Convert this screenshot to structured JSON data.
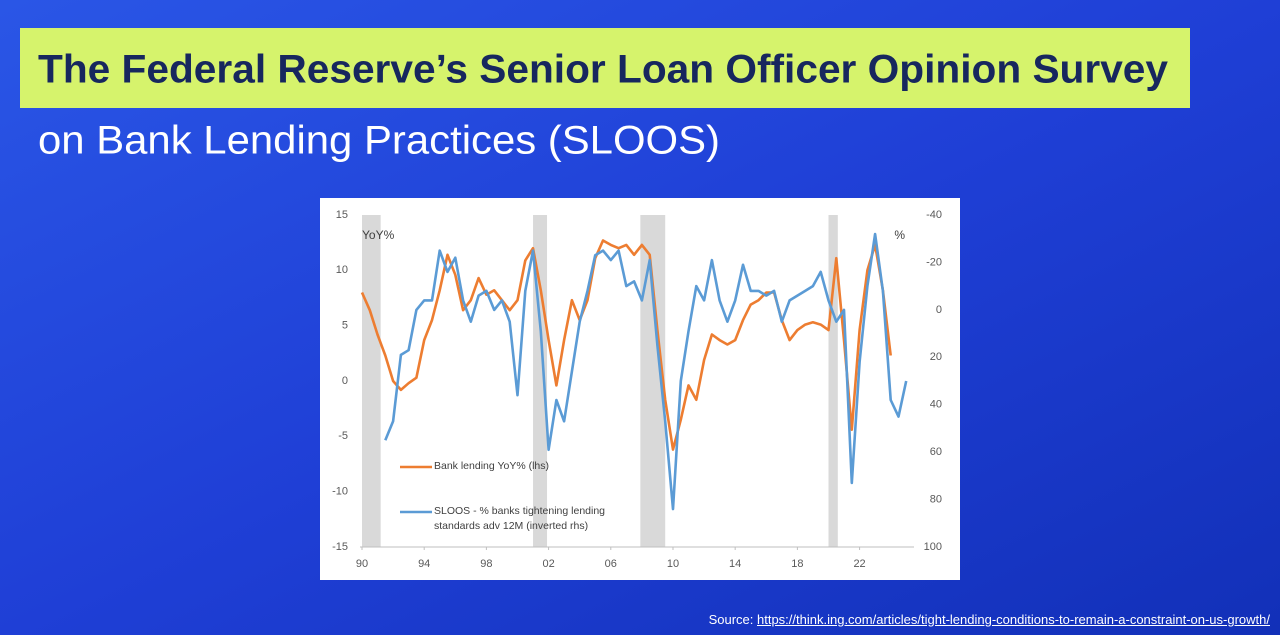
{
  "header": {
    "title": "The Federal Reserve’s Senior Loan Officer Opinion Survey",
    "subtitle": "on Bank Lending Practices (SLOOS)"
  },
  "source": {
    "label": "Source:",
    "url": "https://think.ing.com/articles/tight-lending-conditions-to-remain-a-constraint-on-us-growth/"
  },
  "chart_data": {
    "type": "line",
    "y_label": "YoY%",
    "y2_label": "%",
    "x": [
      1990.0,
      1990.5,
      1991.0,
      1991.5,
      1992.0,
      1992.5,
      1993.0,
      1993.5,
      1994.0,
      1994.5,
      1995.0,
      1995.5,
      1996.0,
      1996.5,
      1997.0,
      1997.5,
      1998.0,
      1998.5,
      1999.0,
      1999.5,
      2000.0,
      2000.5,
      2001.0,
      2001.5,
      2002.0,
      2002.5,
      2003.0,
      2003.5,
      2004.0,
      2004.5,
      2005.0,
      2005.5,
      2006.0,
      2006.5,
      2007.0,
      2007.5,
      2008.0,
      2008.5,
      2009.0,
      2009.5,
      2010.0,
      2010.5,
      2011.0,
      2011.5,
      2012.0,
      2012.5,
      2013.0,
      2013.5,
      2014.0,
      2014.5,
      2015.0,
      2015.5,
      2016.0,
      2016.5,
      2017.0,
      2017.5,
      2018.0,
      2018.5,
      2019.0,
      2019.5,
      2020.0,
      2020.5,
      2021.0,
      2021.5,
      2022.0,
      2022.5,
      2023.0,
      2023.5,
      2024.0,
      2024.5,
      2025.0
    ],
    "series": [
      {
        "name": "Bank lending YoY% (lhs)",
        "color": "#ed7d31",
        "values": [
          8.0,
          6.4,
          4.2,
          2.3,
          0,
          -0.8,
          -0.2,
          0.3,
          3.7,
          5.5,
          8.2,
          11.4,
          9.6,
          6.4,
          7.3,
          9.3,
          7.8,
          8.2,
          7.3,
          6.4,
          7.3,
          10.9,
          12.0,
          8.2,
          3.7,
          -0.4,
          3.7,
          7.3,
          5.5,
          7.3,
          11.1,
          12.7,
          12.3,
          12.0,
          12.3,
          11.4,
          12.3,
          11.4,
          4.6,
          -1.7,
          -6.2,
          -3.5,
          -0.4,
          -1.7,
          1.9,
          4.2,
          3.7,
          3.3,
          3.7,
          5.5,
          6.9,
          7.3,
          8.0,
          8.0,
          5.5,
          3.7,
          4.6,
          5.1,
          5.3,
          5.1,
          4.6,
          11.1,
          3.7,
          -4.4,
          4.6,
          10.0,
          12.3,
          8.2,
          2.3,
          null,
          null
        ]
      },
      {
        "name": "SLOOS - % banks tightening lending standards adv 12M (inverted rhs)",
        "color": "#5b9bd5",
        "axis": "y2",
        "values": [
          null,
          null,
          null,
          55,
          47,
          19,
          17,
          0,
          -4,
          -4,
          -25,
          -16,
          -22,
          -4,
          5,
          -6,
          -8,
          0,
          -4,
          5,
          36,
          -8,
          -25,
          9,
          59,
          38,
          47,
          26,
          5,
          -8,
          -23,
          -25,
          -21,
          -25,
          -10,
          -12,
          -4,
          -21,
          15,
          47,
          84,
          30,
          9,
          -10,
          -4,
          -21,
          -4,
          5,
          -4,
          -19,
          -8,
          -8,
          -6,
          -8,
          5,
          -4,
          -6,
          -8,
          -10,
          -16,
          -4,
          5,
          0,
          73,
          22,
          -10,
          -32,
          -8,
          38,
          45,
          30
        ]
      }
    ],
    "xlim": [
      1990,
      2025.5
    ],
    "xticks": [
      {
        "value": 1990,
        "label": "90"
      },
      {
        "value": 1994,
        "label": "94"
      },
      {
        "value": 1998,
        "label": "98"
      },
      {
        "value": 2002,
        "label": "02"
      },
      {
        "value": 2006,
        "label": "06"
      },
      {
        "value": 2010,
        "label": "10"
      },
      {
        "value": 2014,
        "label": "14"
      },
      {
        "value": 2018,
        "label": "18"
      },
      {
        "value": 2022,
        "label": "22"
      }
    ],
    "ylim": [
      -15,
      15
    ],
    "yticks": [
      -15,
      -10,
      -5,
      0,
      5,
      10,
      15
    ],
    "y2lim": [
      100,
      -40
    ],
    "y2ticks": [
      -40,
      -20,
      0,
      20,
      40,
      60,
      80,
      100
    ],
    "shaded_periods": [
      [
        1990.0,
        1991.2
      ],
      [
        2001.0,
        2001.9
      ],
      [
        2007.9,
        2009.5
      ],
      [
        2020.0,
        2020.6
      ]
    ],
    "grid": false
  }
}
